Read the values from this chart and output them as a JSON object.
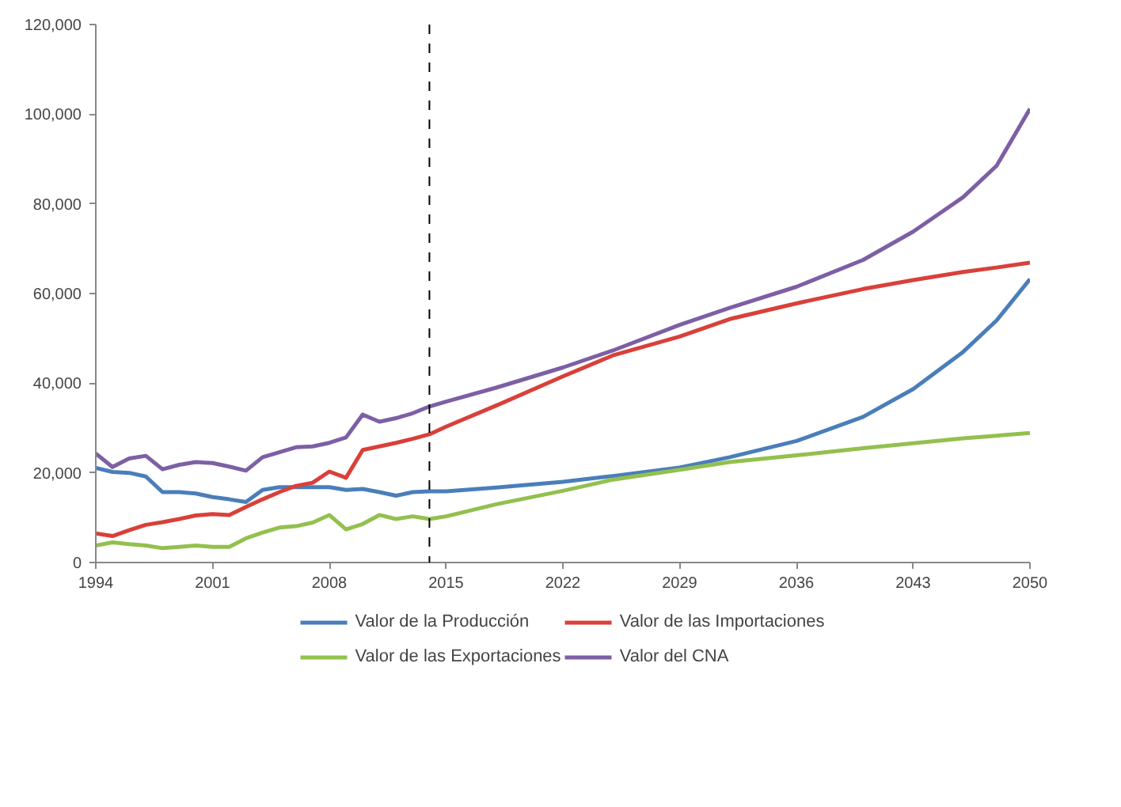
{
  "chart_data": {
    "type": "line",
    "x": [
      1994,
      1995,
      1996,
      1997,
      1998,
      1999,
      2000,
      2001,
      2002,
      2003,
      2004,
      2005,
      2006,
      2007,
      2008,
      2009,
      2010,
      2011,
      2012,
      2013,
      2014,
      2015,
      2018,
      2022,
      2025,
      2029,
      2032,
      2036,
      2040,
      2043,
      2046,
      2048,
      2050
    ],
    "series": [
      {
        "name": "Valor de la Producción",
        "color": "#4a7ebb",
        "values": [
          21100,
          20200,
          20000,
          19200,
          15700,
          15700,
          15400,
          14600,
          14100,
          13500,
          16200,
          16800,
          16800,
          16800,
          16800,
          16200,
          16400,
          15700,
          14900,
          15700,
          15900,
          15900,
          16700,
          18000,
          19300,
          21200,
          23500,
          27100,
          32500,
          38700,
          47000,
          54000,
          63200
        ]
      },
      {
        "name": "Valor de las Importaciones",
        "color": "#d9403a",
        "values": [
          6500,
          5900,
          7200,
          8400,
          9000,
          9700,
          10500,
          10800,
          10600,
          12400,
          14100,
          15700,
          17100,
          17800,
          20300,
          18900,
          25100,
          25900,
          26700,
          27600,
          28600,
          30300,
          35000,
          41500,
          46200,
          50400,
          54300,
          57800,
          61000,
          63000,
          64800,
          65800,
          66900
        ]
      },
      {
        "name": "Valor de las Exportaciones",
        "color": "#93c04e",
        "values": [
          3800,
          4500,
          4100,
          3800,
          3200,
          3500,
          3800,
          3500,
          3500,
          5400,
          6700,
          7800,
          8100,
          8900,
          10600,
          7400,
          8600,
          10600,
          9700,
          10300,
          9700,
          10300,
          13000,
          16000,
          18500,
          20700,
          22400,
          23900,
          25500,
          26600,
          27700,
          28300,
          28900
        ]
      },
      {
        "name": "Valor del CNA",
        "color": "#7d5fa5",
        "values": [
          24300,
          21300,
          23200,
          23800,
          20800,
          21800,
          22400,
          22200,
          21400,
          20500,
          23500,
          24600,
          25700,
          25900,
          26700,
          27900,
          33000,
          31400,
          32200,
          33300,
          34800,
          35900,
          39000,
          43500,
          47300,
          53000,
          56800,
          61500,
          67500,
          73800,
          81500,
          88500,
          101200
        ]
      }
    ],
    "xlim": [
      1994,
      2050
    ],
    "xticks": [
      1994,
      2001,
      2008,
      2015,
      2022,
      2029,
      2036,
      2043,
      2050
    ],
    "ylim": [
      0,
      120000
    ],
    "yticks": [
      {
        "value": 0,
        "label": "0"
      },
      {
        "value": 20000,
        "label": "20,000"
      },
      {
        "value": 40000,
        "label": "40,000"
      },
      {
        "value": 60000,
        "label": "60,000"
      },
      {
        "value": 80000,
        "label": "80,000"
      },
      {
        "value": 100000,
        "label": "100,000"
      },
      {
        "value": 120000,
        "label": "120,000"
      }
    ],
    "ref_lines": [
      {
        "axis": "x",
        "value": 2014,
        "label": null,
        "color": "#000000",
        "line_style": "dashed"
      }
    ],
    "grid": false,
    "legend": "bottom",
    "marker": "none",
    "line_style": "solid"
  }
}
